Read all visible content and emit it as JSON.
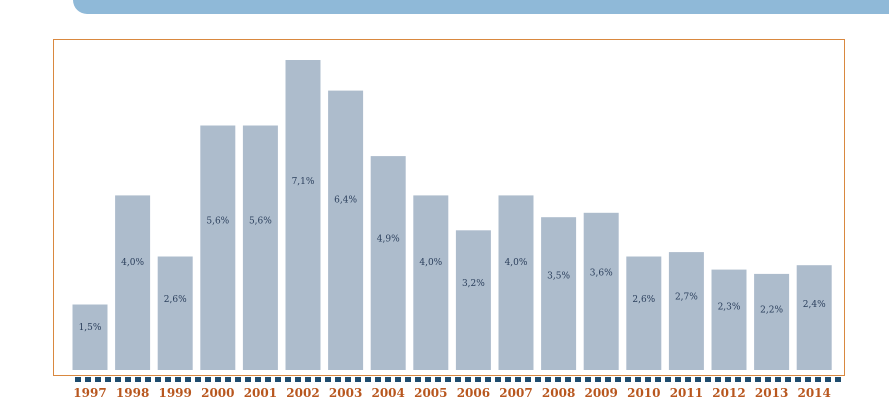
{
  "colors": {
    "bar": "#adbccc",
    "frame": "#d9883f",
    "band": "#8fb9d8",
    "tick_label": "#b8571f",
    "data_label": "#2b3f5c",
    "dashes": "#1e4b6d"
  },
  "chart_data": {
    "type": "bar",
    "categories": [
      "1997",
      "1998",
      "1999",
      "2000",
      "2001",
      "2002",
      "2003",
      "2004",
      "2005",
      "2006",
      "2007",
      "2008",
      "2009",
      "2010",
      "2011",
      "2012",
      "2013",
      "2014"
    ],
    "values": [
      1.5,
      4.0,
      2.6,
      5.6,
      5.6,
      7.1,
      6.4,
      4.9,
      4.0,
      3.2,
      4.0,
      3.5,
      3.6,
      2.6,
      2.7,
      2.3,
      2.2,
      2.4
    ],
    "value_labels": [
      "1,5%",
      "4,0%",
      "2,6%",
      "5,6%",
      "5,6%",
      "7,1%",
      "6,4%",
      "4,9%",
      "4,0%",
      "3,2%",
      "4,0%",
      "3,5%",
      "3,6%",
      "2,6%",
      "2,7%",
      "2,3%",
      "2,2%",
      "2,4%"
    ],
    "title": "",
    "xlabel": "",
    "ylabel": "",
    "ylim": [
      0,
      7.1
    ],
    "grid": false,
    "legend": "none"
  }
}
